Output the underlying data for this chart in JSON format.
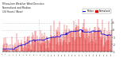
{
  "title": "Milwaukee Weather Wind Direction\nNormalized and Median\n(24 Hours) (New)",
  "bg_color": "#ffffff",
  "plot_bg_color": "#ffffff",
  "grid_color": "#aaaaaa",
  "bar_color": "#dd0000",
  "line_color": "#0000dd",
  "ylim": [
    1.0,
    5.5
  ],
  "y_ticks": [
    1,
    2,
    3,
    4,
    5
  ],
  "ylabel_right": [
    "1",
    "2",
    "3",
    "4",
    "5"
  ],
  "n_bars": 240,
  "seed": 42,
  "title_fontsize": 2.2,
  "legend_labels": [
    "Normalized",
    "Median"
  ],
  "legend_colors": [
    "#dd0000",
    "#0000dd"
  ]
}
